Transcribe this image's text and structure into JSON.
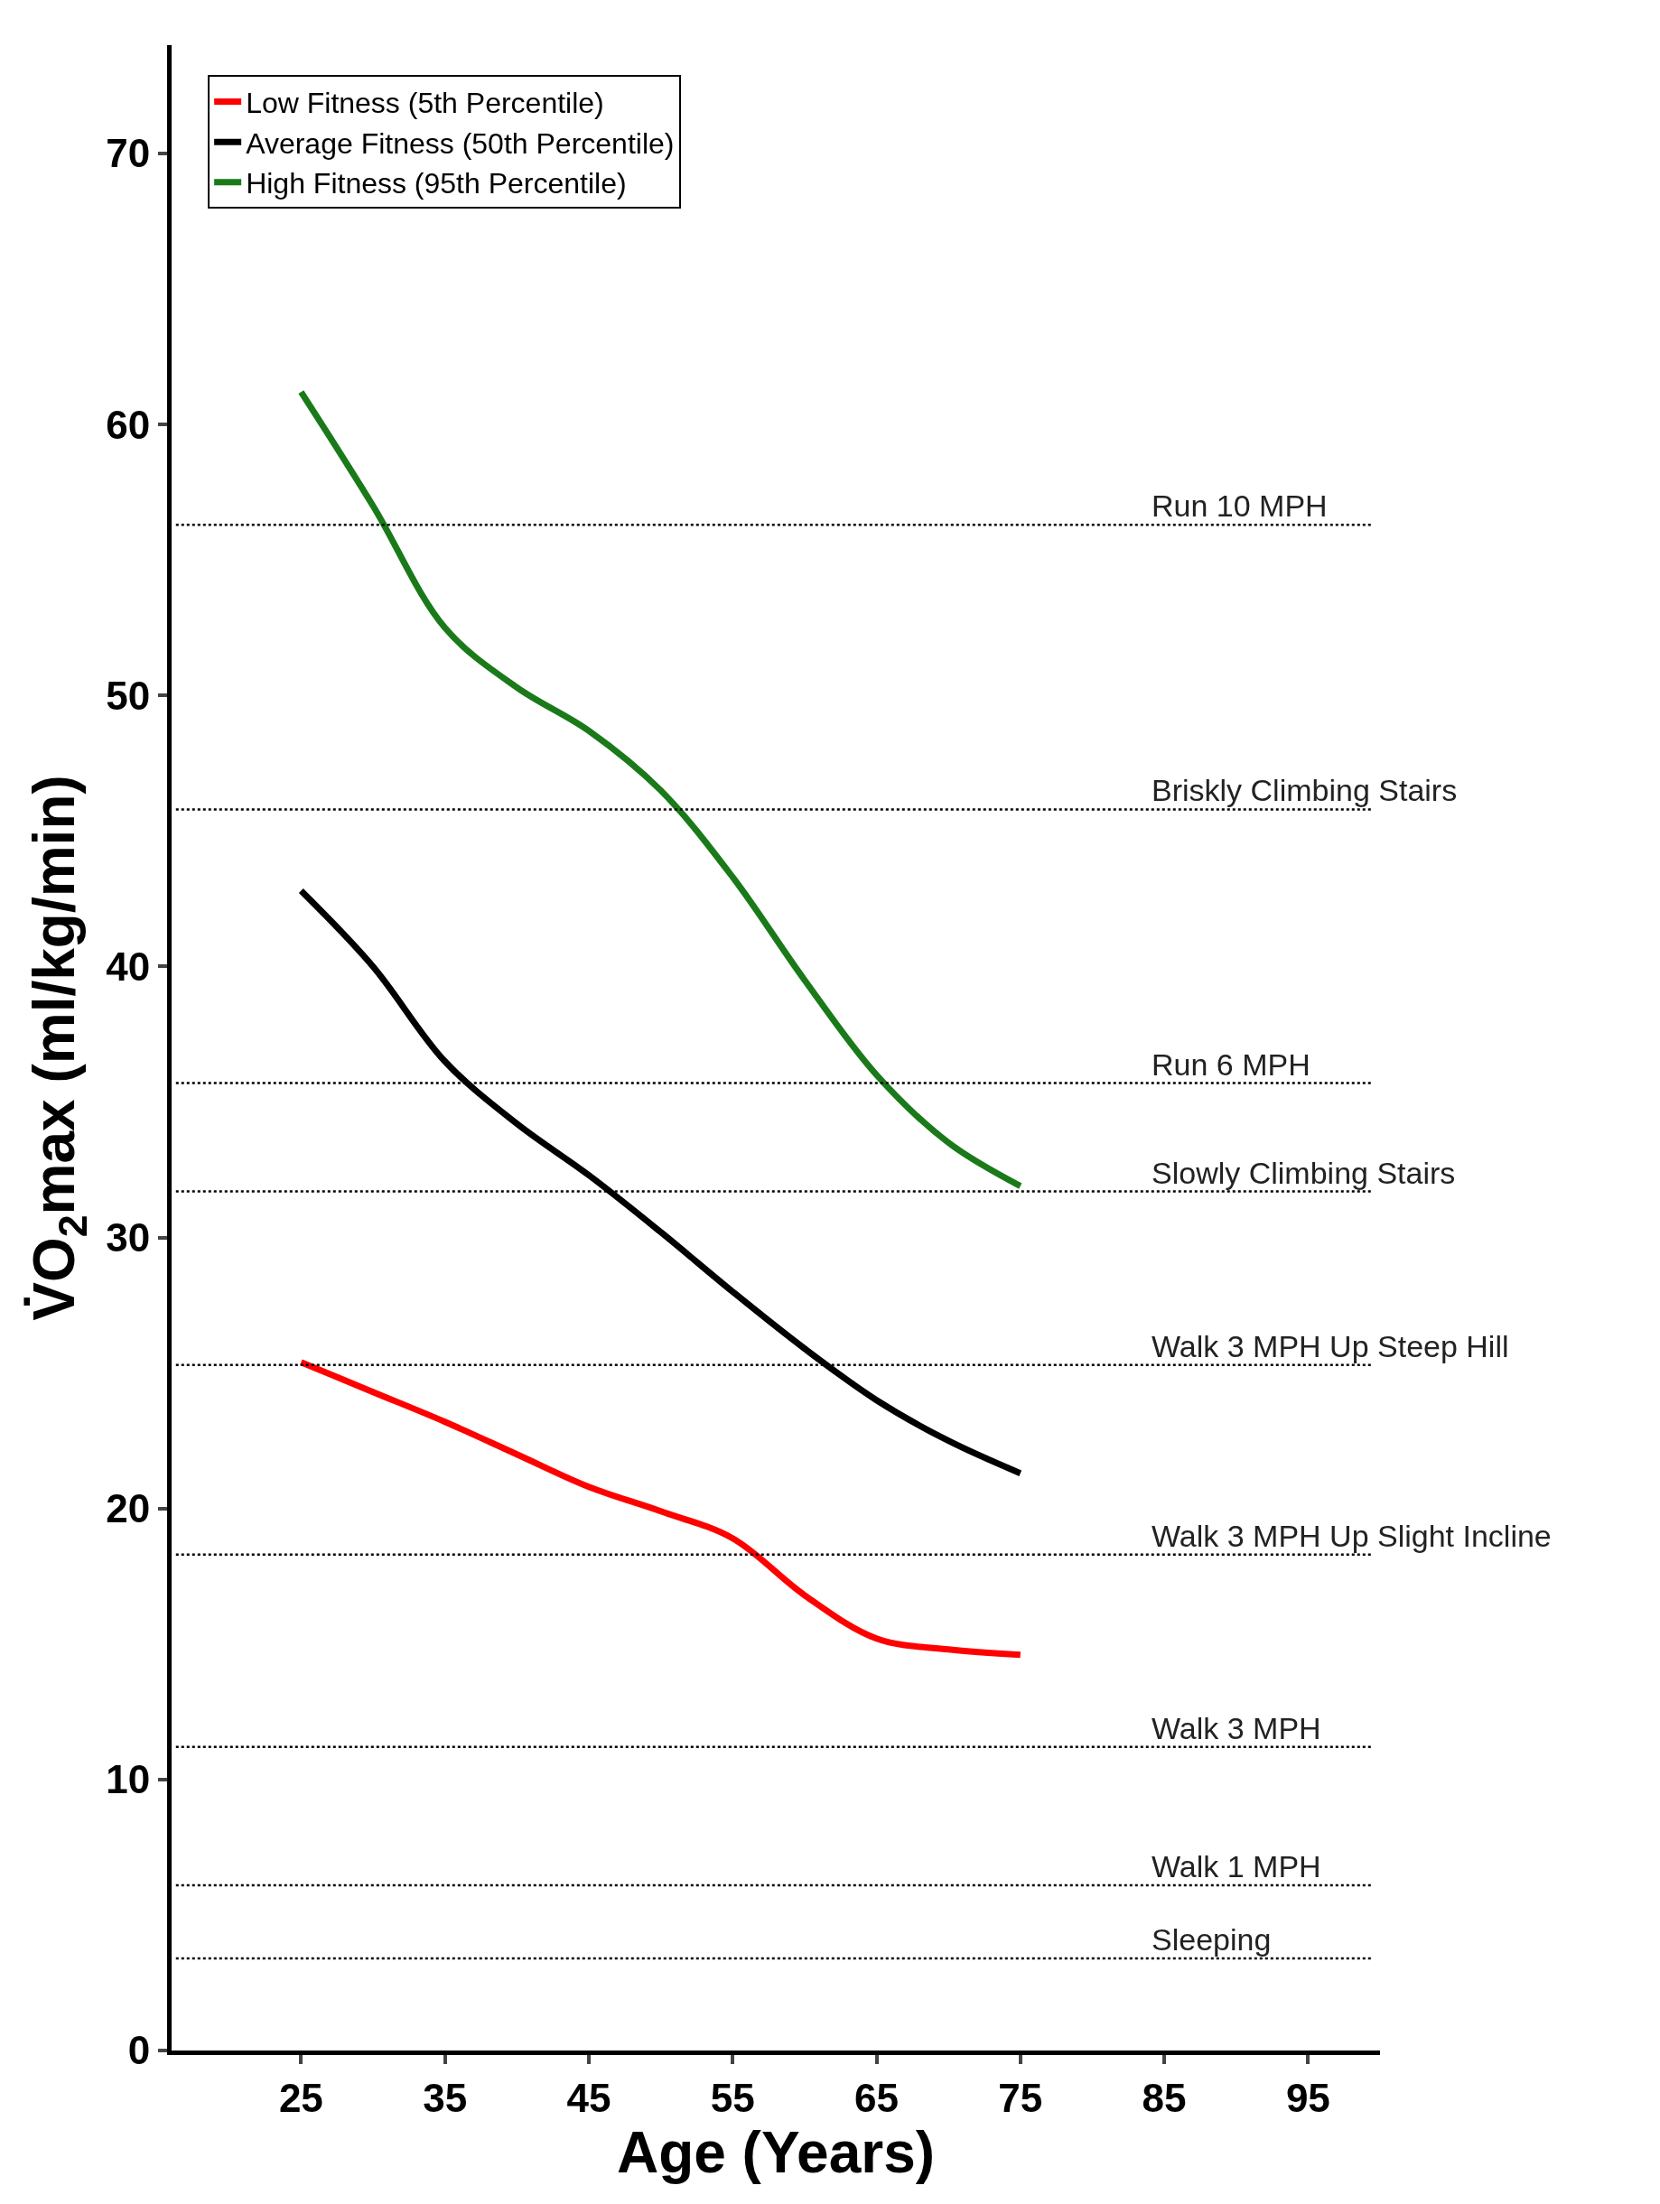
{
  "chart_data": {
    "type": "line",
    "xlabel": "Age (Years)",
    "ylabel": "V̇O$_{2}$max (ml/kg/min)",
    "x": [
      25,
      30,
      35,
      40,
      45,
      50,
      55,
      60,
      65,
      70,
      75
    ],
    "series": [
      {
        "name": "Low Fitness (5th Percentile)",
        "color": "#ff0000",
        "values": [
          25.4,
          24.3,
          23.2,
          22.0,
          20.8,
          19.9,
          18.9,
          16.8,
          15.2,
          14.8,
          14.6
        ]
      },
      {
        "name": "Average Fitness (50th Percentile)",
        "color": "#000000",
        "values": [
          42.8,
          40.0,
          36.5,
          34.2,
          32.3,
          30.2,
          28.0,
          25.9,
          24.0,
          22.5,
          21.3
        ]
      },
      {
        "name": "High Fitness (95th Percentile)",
        "color": "#1a7a1a",
        "values": [
          61.2,
          57.0,
          52.5,
          50.3,
          48.7,
          46.5,
          43.3,
          39.5,
          36.0,
          33.5,
          31.9
        ]
      }
    ],
    "xlim": [
      16,
      100
    ],
    "ylim": [
      0,
      74
    ],
    "xticks": [
      25,
      35,
      45,
      55,
      65,
      75,
      85,
      95
    ],
    "yticks": [
      0,
      10,
      20,
      30,
      40,
      50,
      60,
      70
    ],
    "ref_lines": [
      {
        "axis": "y",
        "value": 56.3,
        "label": "Run 10 MPH",
        "line_style": "dotted"
      },
      {
        "axis": "y",
        "value": 45.8,
        "label": "Briskly Climbing Stairs",
        "line_style": "dotted"
      },
      {
        "axis": "y",
        "value": 35.7,
        "label": "Run 6 MPH",
        "line_style": "dotted"
      },
      {
        "axis": "y",
        "value": 31.7,
        "label": "Slowly Climbing Stairs",
        "line_style": "dotted"
      },
      {
        "axis": "y",
        "value": 25.3,
        "label": "Walk 3 MPH Up Steep Hill",
        "line_style": "dotted"
      },
      {
        "axis": "y",
        "value": 18.3,
        "label": "Walk 3 MPH Up Slight Incline",
        "line_style": "dotted"
      },
      {
        "axis": "y",
        "value": 11.2,
        "label": "Walk 3 MPH",
        "line_style": "dotted"
      },
      {
        "axis": "y",
        "value": 6.1,
        "label": "Walk 1 MPH",
        "line_style": "dotted"
      },
      {
        "axis": "y",
        "value": 3.4,
        "label": "Sleeping",
        "line_style": "dotted"
      }
    ],
    "legend": "top left",
    "marker": "none",
    "line_style": "solid"
  }
}
